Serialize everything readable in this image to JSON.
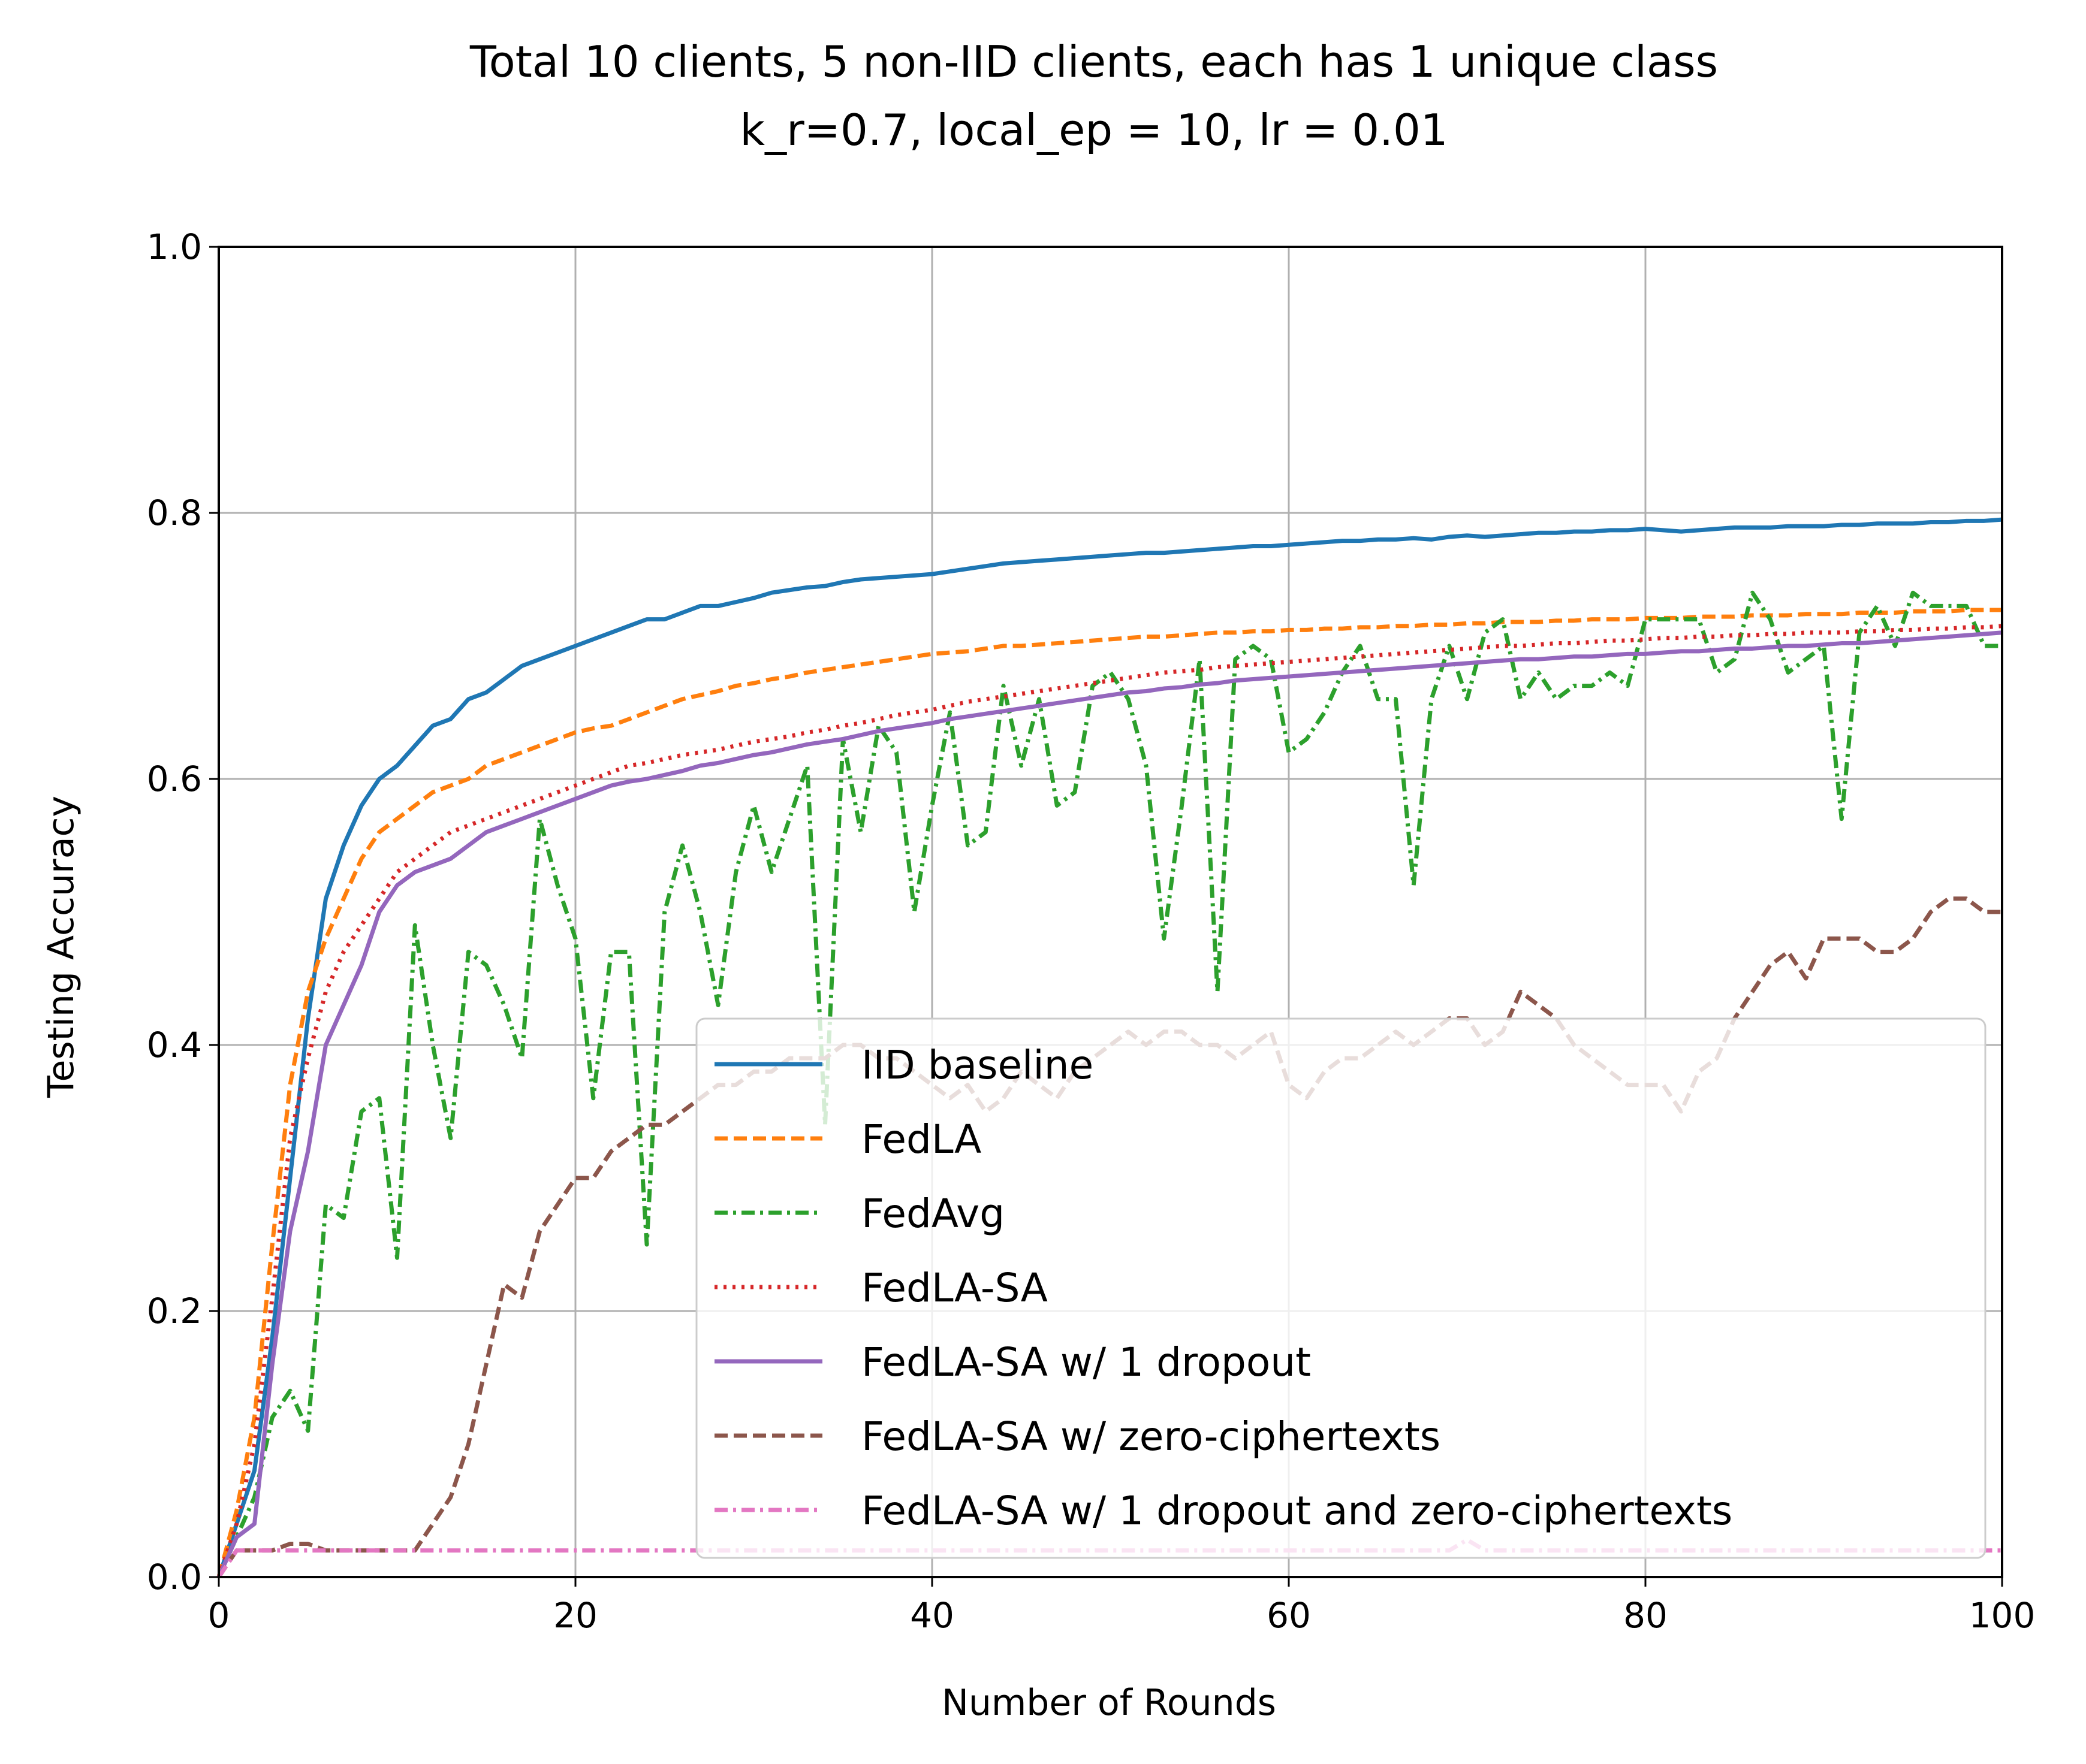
{
  "chart_data": {
    "type": "line",
    "title": "Total 10 clients, 5 non-IID clients, each has 1 unique class",
    "subtitle": "k_r=0.7, local_ep = 10, lr = 0.01",
    "xlabel": "Number of Rounds",
    "ylabel": "Testing Accuracy",
    "xlim": [
      0,
      100
    ],
    "ylim": [
      0,
      1.0
    ],
    "xticks": [
      "0",
      "20",
      "40",
      "60",
      "80",
      "100"
    ],
    "yticks": [
      "0.0",
      "0.2",
      "0.4",
      "0.6",
      "0.8",
      "1.0"
    ],
    "grid": true,
    "legend_position": "lower-right",
    "series": [
      {
        "name": "IID baseline",
        "color": "#1f77b4",
        "dash": "solid",
        "y": [
          0.0,
          0.04,
          0.08,
          0.18,
          0.3,
          0.42,
          0.51,
          0.55,
          0.58,
          0.6,
          0.61,
          0.625,
          0.64,
          0.645,
          0.66,
          0.665,
          0.675,
          0.685,
          0.69,
          0.695,
          0.7,
          0.705,
          0.71,
          0.715,
          0.72,
          0.72,
          0.725,
          0.73,
          0.73,
          0.733,
          0.736,
          0.74,
          0.742,
          0.744,
          0.745,
          0.748,
          0.75,
          0.751,
          0.752,
          0.753,
          0.754,
          0.756,
          0.758,
          0.76,
          0.762,
          0.763,
          0.764,
          0.765,
          0.766,
          0.767,
          0.768,
          0.769,
          0.77,
          0.77,
          0.771,
          0.772,
          0.773,
          0.774,
          0.775,
          0.775,
          0.776,
          0.777,
          0.778,
          0.779,
          0.779,
          0.78,
          0.78,
          0.781,
          0.78,
          0.782,
          0.783,
          0.782,
          0.783,
          0.784,
          0.785,
          0.785,
          0.786,
          0.786,
          0.787,
          0.787,
          0.788,
          0.787,
          0.786,
          0.787,
          0.788,
          0.789,
          0.789,
          0.789,
          0.79,
          0.79,
          0.79,
          0.791,
          0.791,
          0.792,
          0.792,
          0.792,
          0.793,
          0.793,
          0.794,
          0.794,
          0.795
        ]
      },
      {
        "name": "FedLA",
        "color": "#ff7f0e",
        "dash": "dashed",
        "y": [
          0.0,
          0.05,
          0.12,
          0.25,
          0.37,
          0.44,
          0.48,
          0.51,
          0.54,
          0.56,
          0.57,
          0.58,
          0.59,
          0.595,
          0.6,
          0.61,
          0.615,
          0.62,
          0.625,
          0.63,
          0.635,
          0.638,
          0.64,
          0.645,
          0.65,
          0.655,
          0.66,
          0.663,
          0.666,
          0.67,
          0.672,
          0.675,
          0.677,
          0.68,
          0.682,
          0.684,
          0.686,
          0.688,
          0.69,
          0.692,
          0.694,
          0.695,
          0.696,
          0.698,
          0.7,
          0.7,
          0.701,
          0.702,
          0.703,
          0.704,
          0.705,
          0.706,
          0.707,
          0.707,
          0.708,
          0.709,
          0.71,
          0.71,
          0.711,
          0.711,
          0.712,
          0.712,
          0.713,
          0.713,
          0.714,
          0.714,
          0.715,
          0.715,
          0.716,
          0.716,
          0.717,
          0.717,
          0.718,
          0.718,
          0.718,
          0.719,
          0.719,
          0.72,
          0.72,
          0.72,
          0.721,
          0.721,
          0.721,
          0.722,
          0.722,
          0.722,
          0.723,
          0.723,
          0.723,
          0.724,
          0.724,
          0.724,
          0.725,
          0.725,
          0.725,
          0.726,
          0.726,
          0.726,
          0.727,
          0.727,
          0.727
        ]
      },
      {
        "name": "FedAvg",
        "color": "#2ca02c",
        "dash": "dashdot",
        "y": [
          0.0,
          0.03,
          0.06,
          0.12,
          0.14,
          0.11,
          0.28,
          0.27,
          0.35,
          0.36,
          0.24,
          0.49,
          0.4,
          0.33,
          0.47,
          0.46,
          0.43,
          0.39,
          0.57,
          0.52,
          0.48,
          0.36,
          0.47,
          0.47,
          0.25,
          0.5,
          0.55,
          0.5,
          0.43,
          0.53,
          0.58,
          0.53,
          0.57,
          0.61,
          0.34,
          0.63,
          0.56,
          0.64,
          0.62,
          0.5,
          0.58,
          0.65,
          0.55,
          0.56,
          0.67,
          0.61,
          0.66,
          0.58,
          0.59,
          0.67,
          0.68,
          0.66,
          0.61,
          0.48,
          0.58,
          0.69,
          0.44,
          0.69,
          0.7,
          0.69,
          0.62,
          0.63,
          0.65,
          0.68,
          0.7,
          0.66,
          0.66,
          0.52,
          0.66,
          0.7,
          0.66,
          0.71,
          0.72,
          0.66,
          0.68,
          0.66,
          0.67,
          0.67,
          0.68,
          0.67,
          0.72,
          0.72,
          0.72,
          0.72,
          0.68,
          0.69,
          0.74,
          0.72,
          0.68,
          0.69,
          0.7,
          0.57,
          0.71,
          0.73,
          0.7,
          0.74,
          0.73,
          0.73,
          0.73,
          0.7,
          0.7
        ]
      },
      {
        "name": "FedLA-SA",
        "color": "#d62728",
        "dash": "dotted",
        "y": [
          0.0,
          0.04,
          0.1,
          0.21,
          0.33,
          0.39,
          0.44,
          0.47,
          0.49,
          0.51,
          0.53,
          0.54,
          0.55,
          0.56,
          0.565,
          0.57,
          0.575,
          0.58,
          0.585,
          0.59,
          0.595,
          0.6,
          0.605,
          0.61,
          0.612,
          0.615,
          0.618,
          0.62,
          0.622,
          0.625,
          0.628,
          0.63,
          0.632,
          0.635,
          0.637,
          0.64,
          0.642,
          0.645,
          0.648,
          0.65,
          0.652,
          0.655,
          0.658,
          0.66,
          0.662,
          0.664,
          0.666,
          0.668,
          0.67,
          0.672,
          0.674,
          0.676,
          0.678,
          0.68,
          0.681,
          0.682,
          0.684,
          0.685,
          0.686,
          0.687,
          0.688,
          0.689,
          0.69,
          0.691,
          0.692,
          0.693,
          0.694,
          0.695,
          0.696,
          0.697,
          0.698,
          0.699,
          0.7,
          0.7,
          0.701,
          0.702,
          0.702,
          0.703,
          0.704,
          0.704,
          0.705,
          0.706,
          0.706,
          0.707,
          0.707,
          0.708,
          0.708,
          0.709,
          0.709,
          0.71,
          0.71,
          0.71,
          0.711,
          0.711,
          0.712,
          0.712,
          0.713,
          0.713,
          0.714,
          0.714,
          0.715
        ]
      },
      {
        "name": "FedLA-SA w/ 1 dropout",
        "color": "#9467bd",
        "dash": "solid",
        "y": [
          0.0,
          0.03,
          0.04,
          0.16,
          0.26,
          0.32,
          0.4,
          0.43,
          0.46,
          0.5,
          0.52,
          0.53,
          0.535,
          0.54,
          0.55,
          0.56,
          0.565,
          0.57,
          0.575,
          0.58,
          0.585,
          0.59,
          0.595,
          0.598,
          0.6,
          0.603,
          0.606,
          0.61,
          0.612,
          0.615,
          0.618,
          0.62,
          0.623,
          0.626,
          0.628,
          0.63,
          0.633,
          0.636,
          0.638,
          0.64,
          0.642,
          0.645,
          0.647,
          0.649,
          0.651,
          0.653,
          0.655,
          0.657,
          0.659,
          0.661,
          0.663,
          0.665,
          0.666,
          0.668,
          0.669,
          0.671,
          0.672,
          0.674,
          0.675,
          0.676,
          0.677,
          0.678,
          0.679,
          0.68,
          0.681,
          0.682,
          0.683,
          0.684,
          0.685,
          0.686,
          0.687,
          0.688,
          0.689,
          0.69,
          0.69,
          0.691,
          0.692,
          0.692,
          0.693,
          0.694,
          0.694,
          0.695,
          0.696,
          0.696,
          0.697,
          0.698,
          0.698,
          0.699,
          0.7,
          0.7,
          0.701,
          0.702,
          0.702,
          0.703,
          0.704,
          0.705,
          0.706,
          0.707,
          0.708,
          0.709,
          0.71
        ]
      },
      {
        "name": "FedLA-SA w/ zero-ciphertexts",
        "color": "#8c564b",
        "dash": "dashed",
        "y": [
          0.0,
          0.02,
          0.02,
          0.02,
          0.025,
          0.025,
          0.02,
          0.02,
          0.02,
          0.02,
          0.02,
          0.02,
          0.04,
          0.06,
          0.1,
          0.16,
          0.22,
          0.21,
          0.26,
          0.28,
          0.3,
          0.3,
          0.32,
          0.33,
          0.34,
          0.34,
          0.35,
          0.36,
          0.37,
          0.37,
          0.38,
          0.38,
          0.39,
          0.39,
          0.39,
          0.4,
          0.4,
          0.39,
          0.39,
          0.38,
          0.37,
          0.36,
          0.37,
          0.35,
          0.36,
          0.38,
          0.37,
          0.36,
          0.38,
          0.39,
          0.4,
          0.41,
          0.4,
          0.41,
          0.41,
          0.4,
          0.4,
          0.39,
          0.4,
          0.41,
          0.37,
          0.36,
          0.38,
          0.39,
          0.39,
          0.4,
          0.41,
          0.4,
          0.41,
          0.42,
          0.42,
          0.4,
          0.41,
          0.44,
          0.43,
          0.42,
          0.4,
          0.39,
          0.38,
          0.37,
          0.37,
          0.37,
          0.35,
          0.38,
          0.39,
          0.42,
          0.44,
          0.46,
          0.47,
          0.45,
          0.48,
          0.48,
          0.48,
          0.47,
          0.47,
          0.48,
          0.5,
          0.51,
          0.51,
          0.5,
          0.5
        ]
      },
      {
        "name": "FedLA-SA w/ 1 dropout and zero-ciphertexts",
        "color": "#e377c2",
        "dash": "dashdot",
        "y": [
          0.0,
          0.02,
          0.02,
          0.02,
          0.02,
          0.02,
          0.02,
          0.02,
          0.02,
          0.02,
          0.02,
          0.02,
          0.02,
          0.02,
          0.02,
          0.02,
          0.02,
          0.02,
          0.02,
          0.02,
          0.02,
          0.02,
          0.02,
          0.02,
          0.02,
          0.02,
          0.02,
          0.02,
          0.02,
          0.02,
          0.02,
          0.02,
          0.02,
          0.02,
          0.02,
          0.02,
          0.02,
          0.02,
          0.02,
          0.02,
          0.02,
          0.02,
          0.02,
          0.02,
          0.02,
          0.02,
          0.02,
          0.02,
          0.02,
          0.02,
          0.02,
          0.02,
          0.02,
          0.02,
          0.02,
          0.02,
          0.02,
          0.02,
          0.02,
          0.02,
          0.02,
          0.02,
          0.02,
          0.02,
          0.02,
          0.02,
          0.02,
          0.02,
          0.02,
          0.02,
          0.028,
          0.02,
          0.02,
          0.02,
          0.02,
          0.02,
          0.02,
          0.02,
          0.02,
          0.02,
          0.02,
          0.02,
          0.02,
          0.02,
          0.02,
          0.02,
          0.02,
          0.02,
          0.02,
          0.02,
          0.02,
          0.02,
          0.02,
          0.02,
          0.02,
          0.02,
          0.02,
          0.02,
          0.02,
          0.02,
          0.02
        ]
      }
    ]
  }
}
